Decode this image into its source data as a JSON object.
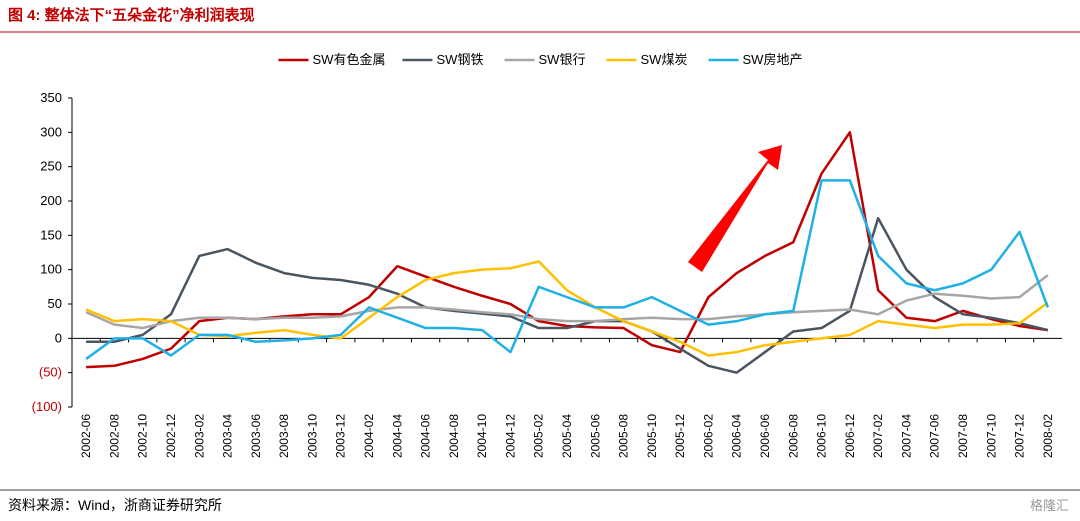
{
  "chart_data": {
    "type": "line",
    "title": "图 4: 整体法下“五朵金花”净利润表现",
    "source": "资料来源：Wind，浙商证券研究所",
    "watermark": "格隆汇",
    "categories": [
      "2002-06",
      "2002-08",
      "2002-10",
      "2002-12",
      "2003-02",
      "2003-04",
      "2003-06",
      "2003-08",
      "2003-10",
      "2003-12",
      "2004-02",
      "2004-04",
      "2004-06",
      "2004-08",
      "2004-10",
      "2004-12",
      "2005-02",
      "2005-04",
      "2005-06",
      "2005-08",
      "2005-10",
      "2005-12",
      "2006-02",
      "2006-04",
      "2006-06",
      "2006-08",
      "2006-10",
      "2006-12",
      "2007-02",
      "2007-04",
      "2007-06",
      "2007-08",
      "2007-10",
      "2007-12",
      "2008-02"
    ],
    "series": [
      {
        "name": "SW有色金属",
        "color": "#c00000",
        "values": [
          -42,
          -40,
          -30,
          -15,
          25,
          30,
          28,
          32,
          35,
          35,
          60,
          105,
          90,
          75,
          62,
          50,
          25,
          18,
          16,
          15,
          -10,
          -20,
          60,
          95,
          120,
          140,
          240,
          300,
          70,
          30,
          25,
          40,
          28,
          18,
          12
        ]
      },
      {
        "name": "SW钢铁",
        "color": "#4a5560",
        "values": [
          -5,
          -5,
          5,
          35,
          120,
          130,
          110,
          95,
          88,
          85,
          78,
          65,
          45,
          40,
          36,
          32,
          15,
          15,
          25,
          25,
          10,
          -15,
          -40,
          -50,
          -20,
          10,
          15,
          40,
          175,
          100,
          60,
          35,
          30,
          22,
          12
        ]
      },
      {
        "name": "SW银行",
        "color": "#a6a6a6",
        "values": [
          38,
          20,
          15,
          25,
          30,
          30,
          28,
          30,
          30,
          32,
          40,
          45,
          45,
          42,
          38,
          35,
          28,
          25,
          25,
          28,
          30,
          28,
          28,
          32,
          35,
          38,
          40,
          42,
          35,
          55,
          65,
          62,
          58,
          60,
          92
        ]
      },
      {
        "name": "SW煤炭",
        "color": "#ffc000",
        "values": [
          42,
          25,
          28,
          25,
          5,
          3,
          8,
          12,
          5,
          0,
          30,
          60,
          85,
          95,
          100,
          102,
          112,
          70,
          45,
          25,
          10,
          -5,
          -25,
          -20,
          -10,
          -5,
          0,
          5,
          25,
          20,
          15,
          20,
          20,
          22,
          52
        ]
      },
      {
        "name": "SW房地产",
        "color": "#1fb0e8",
        "values": [
          -30,
          0,
          0,
          -25,
          5,
          5,
          -5,
          -3,
          0,
          5,
          45,
          30,
          15,
          15,
          12,
          -20,
          75,
          60,
          45,
          45,
          60,
          40,
          20,
          25,
          35,
          40,
          230,
          230,
          120,
          80,
          70,
          80,
          100,
          155,
          45
        ]
      }
    ],
    "ylim": [
      -100,
      350
    ],
    "yticks": [
      {
        "value": -100,
        "label": "(100)"
      },
      {
        "value": -50,
        "label": "(50)"
      },
      0,
      50,
      100,
      150,
      200,
      250,
      300,
      350
    ],
    "legend": "top"
  }
}
